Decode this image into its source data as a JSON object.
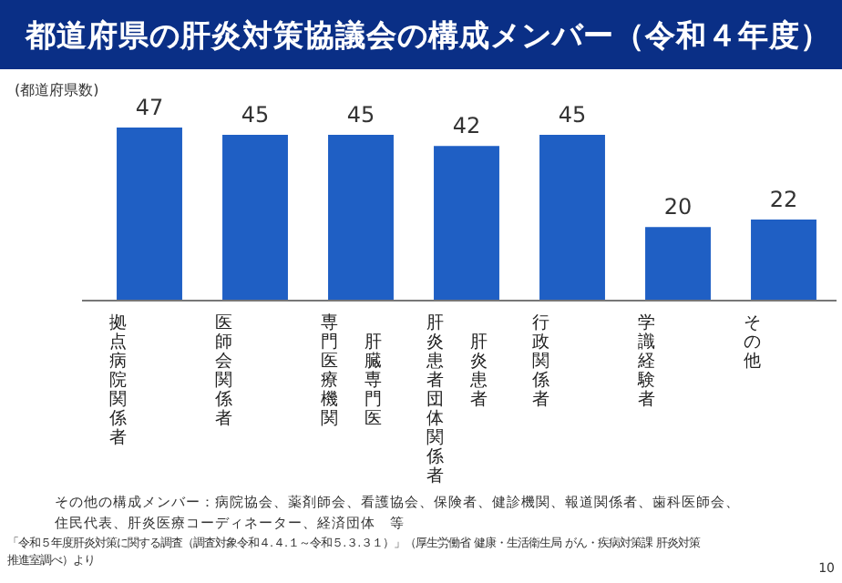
{
  "chart_data": {
    "type": "bar",
    "title": "都道府県の肝炎対策協議会の構成メンバー（令和４年度）",
    "ylabel": "(都道府県数)",
    "categories": [
      "拠点病院関係者",
      "医師会関係者",
      "専門医療機関",
      "肝炎患者団体関係者",
      "行政関係者",
      "学識経験者",
      "その他"
    ],
    "values": [
      47,
      45,
      45,
      42,
      45,
      20,
      22
    ],
    "color": "#1f5fc4",
    "data_labels": true,
    "annotations": [
      "肝臓専門医",
      "肝炎患者",
      "その他の構成メンバー：病院協会、薬剤師会、看護協会、保険者、健診機関、報道関係者、歯科医師会、住民代表、肝炎医療コーディネーター、経済団体　等",
      "「令和５年度肝炎対策に関する調査（調査対象令和４.４.１～令和５.３.３１）」（厚生労働省 健康・生活衛生局 がん・疾病対策課 肝炎対策推進室調べ）より",
      "10"
    ]
  }
}
